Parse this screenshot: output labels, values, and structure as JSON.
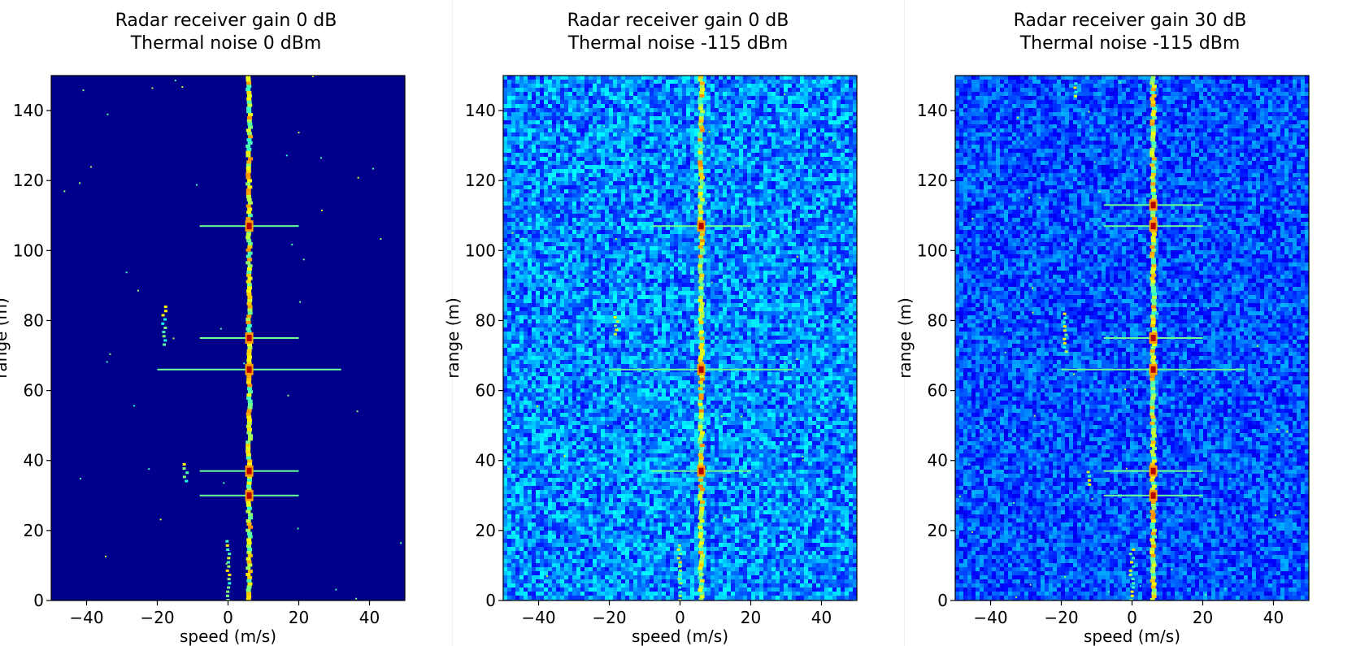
{
  "chart_data": [
    {
      "type": "heatmap",
      "title": "Radar receiver gain 0 dB",
      "subtitle": "Thermal noise 0 dBm",
      "xlabel": "speed (m/s)",
      "ylabel": "range (m)",
      "xlim": [
        -50,
        50
      ],
      "ylim": [
        0,
        150
      ],
      "xticks": [
        -40,
        -20,
        0,
        20,
        40
      ],
      "yticks": [
        0,
        20,
        40,
        60,
        80,
        100,
        120,
        140
      ],
      "colormap": "jet",
      "background_level": 0.05,
      "noise_amplitude": 0.0,
      "main_target_speed": 6,
      "strong_ranges": [
        66,
        75,
        37,
        30,
        107
      ],
      "secondary_clusters": [
        {
          "speed": -18,
          "range_from": 73,
          "range_to": 85
        },
        {
          "speed": -12,
          "range_from": 34,
          "range_to": 40
        },
        {
          "speed": 0,
          "range_from": 0,
          "range_to": 17
        }
      ],
      "colors": {
        "background": "#00008b"
      }
    },
    {
      "type": "heatmap",
      "title": "Radar receiver gain 0 dB",
      "subtitle": "Thermal noise -115 dBm",
      "xlabel": "speed (m/s)",
      "ylabel": "range (m)",
      "xlim": [
        -50,
        50
      ],
      "ylim": [
        0,
        150
      ],
      "xticks": [
        -40,
        -20,
        0,
        20,
        40
      ],
      "yticks": [
        0,
        20,
        40,
        60,
        80,
        100,
        120,
        140
      ],
      "colormap": "jet",
      "background_level": 0.22,
      "noise_amplitude": 0.12,
      "main_target_speed": 6,
      "strong_ranges": [
        66,
        37,
        107
      ],
      "secondary_clusters": [
        {
          "speed": -18,
          "range_from": 76,
          "range_to": 82
        },
        {
          "speed": 0,
          "range_from": 0,
          "range_to": 16
        }
      ],
      "colors": {
        "background": "#1e3cf0"
      }
    },
    {
      "type": "heatmap",
      "title": "Radar receiver gain 30 dB",
      "subtitle": "Thermal noise -115 dBm",
      "xlabel": "speed (m/s)",
      "ylabel": "range (m)",
      "xlim": [
        -50,
        50
      ],
      "ylim": [
        0,
        150
      ],
      "xticks": [
        -40,
        -20,
        0,
        20,
        40
      ],
      "yticks": [
        0,
        20,
        40,
        60,
        80,
        100,
        120,
        140
      ],
      "colormap": "jet",
      "background_level": 0.17,
      "noise_amplitude": 0.1,
      "main_target_speed": 6,
      "strong_ranges": [
        66,
        75,
        37,
        30,
        107,
        113
      ],
      "secondary_clusters": [
        {
          "speed": -19,
          "range_from": 71,
          "range_to": 83
        },
        {
          "speed": -12,
          "range_from": 33,
          "range_to": 37
        },
        {
          "speed": 0,
          "range_from": 0,
          "range_to": 15
        },
        {
          "speed": -16,
          "range_from": 144,
          "range_to": 148
        }
      ],
      "colors": {
        "background": "#1428d2"
      }
    }
  ]
}
